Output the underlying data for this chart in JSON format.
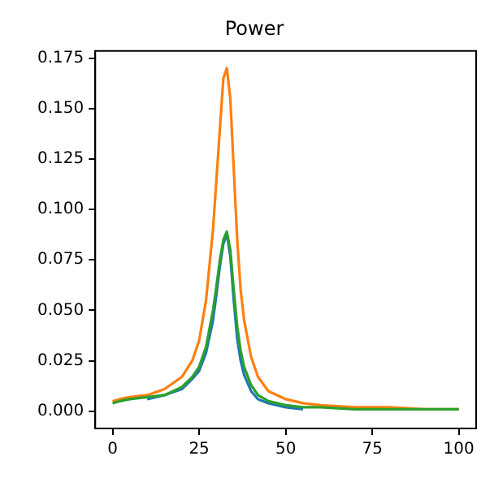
{
  "chart_data": {
    "type": "line",
    "title": "Power",
    "xlim": [
      -5,
      105
    ],
    "xticks": [
      0,
      25,
      50,
      75,
      100
    ],
    "ylim": [
      -0.0085,
      0.1785
    ],
    "yticks": [
      {
        "value": 0,
        "label": "0.000"
      },
      {
        "value": 0.025,
        "label": "0.025"
      },
      {
        "value": 0.05,
        "label": "0.050"
      },
      {
        "value": 0.075,
        "label": "0.075"
      },
      {
        "value": 0.1,
        "label": "0.100"
      },
      {
        "value": 0.125,
        "label": "0.125"
      },
      {
        "value": 0.15,
        "label": "0.150"
      },
      {
        "value": 0.175,
        "label": "0.175"
      }
    ],
    "grid": false,
    "legend": false,
    "marker": "none",
    "line_style": "solid",
    "series": [
      {
        "color": "#1f77b4",
        "x": [
          10,
          15,
          20,
          23,
          25,
          27,
          29,
          30,
          31,
          32,
          33,
          34,
          35,
          36,
          37,
          38,
          40,
          42,
          45,
          50,
          55
        ],
        "values": [
          0.006,
          0.008,
          0.011,
          0.016,
          0.02,
          0.029,
          0.045,
          0.058,
          0.072,
          0.083,
          0.088,
          0.077,
          0.055,
          0.036,
          0.025,
          0.018,
          0.01,
          0.006,
          0.004,
          0.002,
          0.001
        ]
      },
      {
        "color": "#ff7f0e",
        "x": [
          0,
          2,
          5,
          10,
          15,
          20,
          23,
          25,
          27,
          29,
          30,
          31,
          32,
          33,
          34,
          35,
          36,
          37,
          38,
          40,
          42,
          45,
          50,
          55,
          60,
          70,
          80,
          90,
          100
        ],
        "values": [
          0.005,
          0.006,
          0.007,
          0.008,
          0.011,
          0.017,
          0.025,
          0.035,
          0.055,
          0.09,
          0.115,
          0.14,
          0.165,
          0.17,
          0.155,
          0.12,
          0.085,
          0.06,
          0.045,
          0.027,
          0.017,
          0.01,
          0.006,
          0.004,
          0.003,
          0.002,
          0.002,
          0.001,
          0.001
        ]
      },
      {
        "color": "#2ca02c",
        "x": [
          0,
          2,
          5,
          10,
          15,
          20,
          23,
          25,
          27,
          29,
          30,
          31,
          32,
          33,
          34,
          35,
          36,
          37,
          38,
          40,
          42,
          45,
          50,
          55,
          60,
          70,
          80,
          90,
          100
        ],
        "values": [
          0.004,
          0.005,
          0.006,
          0.007,
          0.008,
          0.012,
          0.017,
          0.022,
          0.032,
          0.05,
          0.062,
          0.075,
          0.085,
          0.089,
          0.08,
          0.06,
          0.042,
          0.03,
          0.022,
          0.013,
          0.008,
          0.005,
          0.003,
          0.002,
          0.002,
          0.001,
          0.001,
          0.001,
          0.001
        ]
      }
    ]
  }
}
